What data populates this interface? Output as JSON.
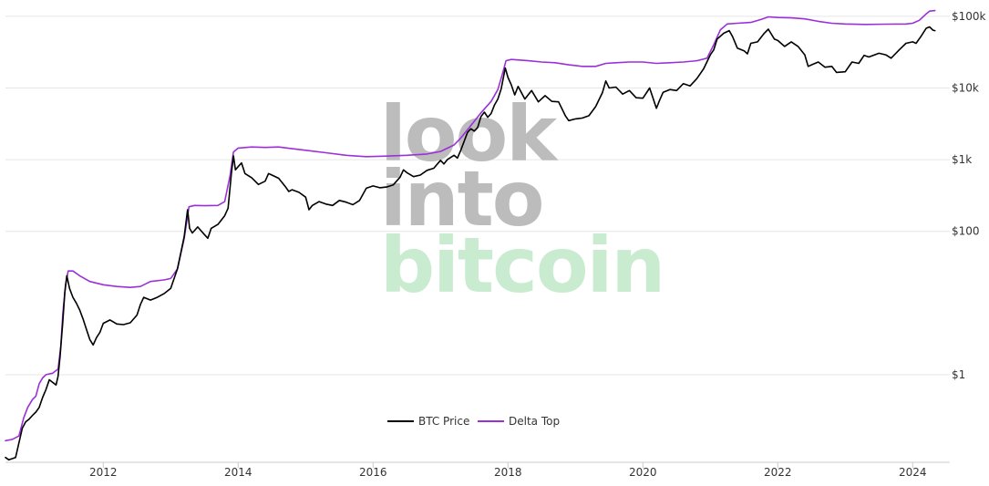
{
  "watermark": {
    "line1": "look",
    "line2": "into",
    "line3": "bitcoin",
    "color_dark": "#bcbcbc",
    "color_green": "#c9ecd0"
  },
  "chart_data": {
    "type": "line",
    "title": "",
    "xlabel": "",
    "ylabel": "",
    "scale": "log",
    "grid": true,
    "legend_position": "bottom-center",
    "x_ticks": [
      "2012",
      "2014",
      "2016",
      "2018",
      "2020",
      "2022",
      "2024"
    ],
    "y_ticks": [
      {
        "value": 1,
        "label": "$1"
      },
      {
        "value": 100,
        "label": "$100"
      },
      {
        "value": 1000,
        "label": "$1k"
      },
      {
        "value": 10000,
        "label": "$10k"
      },
      {
        "value": 100000,
        "label": "$100k"
      }
    ],
    "xlim": [
      2010.55,
      2024.55
    ],
    "ylim": [
      0.06,
      150000
    ],
    "series": [
      {
        "name": "BTC Price",
        "color": "#000000",
        "points": [
          [
            2010.55,
            0.07
          ],
          [
            2010.6,
            0.065
          ],
          [
            2010.7,
            0.07
          ],
          [
            2010.8,
            0.18
          ],
          [
            2010.85,
            0.22
          ],
          [
            2010.9,
            0.24
          ],
          [
            2010.95,
            0.27
          ],
          [
            2011.0,
            0.3
          ],
          [
            2011.05,
            0.35
          ],
          [
            2011.1,
            0.48
          ],
          [
            2011.15,
            0.62
          ],
          [
            2011.2,
            0.85
          ],
          [
            2011.25,
            0.78
          ],
          [
            2011.3,
            0.72
          ],
          [
            2011.33,
            0.95
          ],
          [
            2011.36,
            1.8
          ],
          [
            2011.4,
            5.5
          ],
          [
            2011.43,
            14
          ],
          [
            2011.46,
            24
          ],
          [
            2011.5,
            16
          ],
          [
            2011.55,
            12
          ],
          [
            2011.6,
            10
          ],
          [
            2011.65,
            8
          ],
          [
            2011.7,
            6
          ],
          [
            2011.75,
            4.3
          ],
          [
            2011.8,
            3.1
          ],
          [
            2011.85,
            2.6
          ],
          [
            2011.9,
            3.3
          ],
          [
            2011.95,
            3.9
          ],
          [
            2012.0,
            5.2
          ],
          [
            2012.1,
            5.8
          ],
          [
            2012.2,
            5.1
          ],
          [
            2012.3,
            5.0
          ],
          [
            2012.4,
            5.3
          ],
          [
            2012.5,
            6.8
          ],
          [
            2012.55,
            9.5
          ],
          [
            2012.6,
            12
          ],
          [
            2012.7,
            11
          ],
          [
            2012.8,
            12
          ],
          [
            2012.9,
            13.5
          ],
          [
            2013.0,
            16
          ],
          [
            2013.1,
            30
          ],
          [
            2013.2,
            85
          ],
          [
            2013.25,
            200
          ],
          [
            2013.28,
            110
          ],
          [
            2013.32,
            95
          ],
          [
            2013.4,
            115
          ],
          [
            2013.5,
            90
          ],
          [
            2013.55,
            80
          ],
          [
            2013.6,
            110
          ],
          [
            2013.7,
            125
          ],
          [
            2013.8,
            165
          ],
          [
            2013.85,
            210
          ],
          [
            2013.9,
            650
          ],
          [
            2013.93,
            1130
          ],
          [
            2013.96,
            720
          ],
          [
            2014.0,
            800
          ],
          [
            2014.05,
            900
          ],
          [
            2014.1,
            640
          ],
          [
            2014.2,
            560
          ],
          [
            2014.3,
            450
          ],
          [
            2014.4,
            500
          ],
          [
            2014.45,
            640
          ],
          [
            2014.5,
            610
          ],
          [
            2014.6,
            550
          ],
          [
            2014.7,
            420
          ],
          [
            2014.75,
            360
          ],
          [
            2014.8,
            380
          ],
          [
            2014.9,
            350
          ],
          [
            2015.0,
            300
          ],
          [
            2015.05,
            200
          ],
          [
            2015.1,
            230
          ],
          [
            2015.2,
            260
          ],
          [
            2015.3,
            240
          ],
          [
            2015.4,
            230
          ],
          [
            2015.5,
            270
          ],
          [
            2015.6,
            255
          ],
          [
            2015.7,
            235
          ],
          [
            2015.8,
            270
          ],
          [
            2015.9,
            400
          ],
          [
            2016.0,
            430
          ],
          [
            2016.1,
            405
          ],
          [
            2016.2,
            415
          ],
          [
            2016.3,
            445
          ],
          [
            2016.4,
            570
          ],
          [
            2016.45,
            720
          ],
          [
            2016.5,
            660
          ],
          [
            2016.6,
            580
          ],
          [
            2016.7,
            610
          ],
          [
            2016.8,
            710
          ],
          [
            2016.9,
            760
          ],
          [
            2017.0,
            980
          ],
          [
            2017.05,
            870
          ],
          [
            2017.1,
            1000
          ],
          [
            2017.2,
            1150
          ],
          [
            2017.25,
            1050
          ],
          [
            2017.3,
            1350
          ],
          [
            2017.4,
            2400
          ],
          [
            2017.45,
            2700
          ],
          [
            2017.5,
            2500
          ],
          [
            2017.55,
            2800
          ],
          [
            2017.6,
            4000
          ],
          [
            2017.65,
            4600
          ],
          [
            2017.7,
            3900
          ],
          [
            2017.75,
            4400
          ],
          [
            2017.8,
            5800
          ],
          [
            2017.85,
            7000
          ],
          [
            2017.9,
            9800
          ],
          [
            2017.96,
            19000
          ],
          [
            2018.0,
            14000
          ],
          [
            2018.05,
            11000
          ],
          [
            2018.1,
            8000
          ],
          [
            2018.15,
            10500
          ],
          [
            2018.25,
            7000
          ],
          [
            2018.35,
            9200
          ],
          [
            2018.45,
            6400
          ],
          [
            2018.55,
            7800
          ],
          [
            2018.65,
            6500
          ],
          [
            2018.75,
            6400
          ],
          [
            2018.85,
            4100
          ],
          [
            2018.9,
            3500
          ],
          [
            2019.0,
            3700
          ],
          [
            2019.1,
            3800
          ],
          [
            2019.2,
            4100
          ],
          [
            2019.3,
            5500
          ],
          [
            2019.4,
            8600
          ],
          [
            2019.45,
            12500
          ],
          [
            2019.5,
            10000
          ],
          [
            2019.6,
            10300
          ],
          [
            2019.7,
            8200
          ],
          [
            2019.8,
            9200
          ],
          [
            2019.9,
            7300
          ],
          [
            2020.0,
            7200
          ],
          [
            2020.1,
            10000
          ],
          [
            2020.2,
            5200
          ],
          [
            2020.25,
            6800
          ],
          [
            2020.3,
            8700
          ],
          [
            2020.4,
            9500
          ],
          [
            2020.5,
            9200
          ],
          [
            2020.6,
            11500
          ],
          [
            2020.7,
            10700
          ],
          [
            2020.8,
            13500
          ],
          [
            2020.9,
            18500
          ],
          [
            2021.0,
            29000
          ],
          [
            2021.05,
            34000
          ],
          [
            2021.1,
            48000
          ],
          [
            2021.2,
            58000
          ],
          [
            2021.28,
            63000
          ],
          [
            2021.33,
            52000
          ],
          [
            2021.4,
            36000
          ],
          [
            2021.5,
            33000
          ],
          [
            2021.55,
            30000
          ],
          [
            2021.6,
            42000
          ],
          [
            2021.7,
            44000
          ],
          [
            2021.8,
            58000
          ],
          [
            2021.86,
            66000
          ],
          [
            2021.95,
            48000
          ],
          [
            2022.0,
            46000
          ],
          [
            2022.1,
            38000
          ],
          [
            2022.2,
            44000
          ],
          [
            2022.3,
            38000
          ],
          [
            2022.4,
            29000
          ],
          [
            2022.45,
            20000
          ],
          [
            2022.5,
            21000
          ],
          [
            2022.6,
            23000
          ],
          [
            2022.7,
            19500
          ],
          [
            2022.8,
            20000
          ],
          [
            2022.87,
            16500
          ],
          [
            2023.0,
            16800
          ],
          [
            2023.1,
            23000
          ],
          [
            2023.2,
            22000
          ],
          [
            2023.28,
            28500
          ],
          [
            2023.35,
            27000
          ],
          [
            2023.5,
            30500
          ],
          [
            2023.6,
            29000
          ],
          [
            2023.68,
            26000
          ],
          [
            2023.8,
            34000
          ],
          [
            2023.9,
            42000
          ],
          [
            2024.0,
            44000
          ],
          [
            2024.05,
            42000
          ],
          [
            2024.12,
            52000
          ],
          [
            2024.2,
            68000
          ],
          [
            2024.25,
            71000
          ],
          [
            2024.3,
            64000
          ],
          [
            2024.33,
            63000
          ]
        ]
      },
      {
        "name": "Delta Top",
        "color": "#9b30d9",
        "points": [
          [
            2010.55,
            0.12
          ],
          [
            2010.65,
            0.125
          ],
          [
            2010.75,
            0.14
          ],
          [
            2010.82,
            0.25
          ],
          [
            2010.88,
            0.35
          ],
          [
            2010.95,
            0.45
          ],
          [
            2011.0,
            0.5
          ],
          [
            2011.05,
            0.75
          ],
          [
            2011.1,
            0.9
          ],
          [
            2011.15,
            1.0
          ],
          [
            2011.25,
            1.05
          ],
          [
            2011.33,
            1.2
          ],
          [
            2011.37,
            2.5
          ],
          [
            2011.4,
            7
          ],
          [
            2011.44,
            18
          ],
          [
            2011.48,
            28
          ],
          [
            2011.55,
            28
          ],
          [
            2011.65,
            24
          ],
          [
            2011.8,
            20
          ],
          [
            2012.0,
            18
          ],
          [
            2012.2,
            17
          ],
          [
            2012.4,
            16.5
          ],
          [
            2012.55,
            17
          ],
          [
            2012.7,
            20
          ],
          [
            2012.9,
            21
          ],
          [
            2013.0,
            22
          ],
          [
            2013.1,
            30
          ],
          [
            2013.2,
            80
          ],
          [
            2013.27,
            220
          ],
          [
            2013.35,
            230
          ],
          [
            2013.5,
            228
          ],
          [
            2013.7,
            230
          ],
          [
            2013.8,
            260
          ],
          [
            2013.88,
            600
          ],
          [
            2013.93,
            1280
          ],
          [
            2014.0,
            1450
          ],
          [
            2014.2,
            1500
          ],
          [
            2014.4,
            1480
          ],
          [
            2014.6,
            1500
          ],
          [
            2014.8,
            1420
          ],
          [
            2015.0,
            1350
          ],
          [
            2015.3,
            1250
          ],
          [
            2015.6,
            1150
          ],
          [
            2015.9,
            1100
          ],
          [
            2016.2,
            1120
          ],
          [
            2016.5,
            1150
          ],
          [
            2016.8,
            1200
          ],
          [
            2017.0,
            1300
          ],
          [
            2017.2,
            1600
          ],
          [
            2017.3,
            2000
          ],
          [
            2017.45,
            3000
          ],
          [
            2017.6,
            4500
          ],
          [
            2017.75,
            6500
          ],
          [
            2017.85,
            9500
          ],
          [
            2017.92,
            16000
          ],
          [
            2017.97,
            24000
          ],
          [
            2018.05,
            25000
          ],
          [
            2018.3,
            24000
          ],
          [
            2018.5,
            23000
          ],
          [
            2018.7,
            22500
          ],
          [
            2018.9,
            21000
          ],
          [
            2019.1,
            20000
          ],
          [
            2019.3,
            20000
          ],
          [
            2019.45,
            22000
          ],
          [
            2019.6,
            22500
          ],
          [
            2019.8,
            23000
          ],
          [
            2020.0,
            23000
          ],
          [
            2020.2,
            22000
          ],
          [
            2020.4,
            22500
          ],
          [
            2020.6,
            23000
          ],
          [
            2020.8,
            24000
          ],
          [
            2020.95,
            26000
          ],
          [
            2021.05,
            40000
          ],
          [
            2021.15,
            65000
          ],
          [
            2021.25,
            78000
          ],
          [
            2021.4,
            80000
          ],
          [
            2021.6,
            82000
          ],
          [
            2021.75,
            90000
          ],
          [
            2021.86,
            98000
          ],
          [
            2022.0,
            96000
          ],
          [
            2022.2,
            95000
          ],
          [
            2022.4,
            92000
          ],
          [
            2022.6,
            85000
          ],
          [
            2022.8,
            80000
          ],
          [
            2023.0,
            78000
          ],
          [
            2023.3,
            77000
          ],
          [
            2023.6,
            77500
          ],
          [
            2023.9,
            78000
          ],
          [
            2024.0,
            80000
          ],
          [
            2024.1,
            88000
          ],
          [
            2024.2,
            108000
          ],
          [
            2024.25,
            118000
          ],
          [
            2024.33,
            120000
          ]
        ]
      }
    ]
  }
}
